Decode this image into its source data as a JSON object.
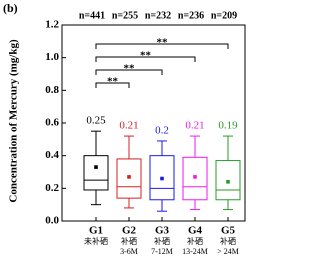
{
  "chart_data": {
    "type": "box",
    "panel_label": "(b)",
    "y_label": "Concentration of Mercury (mg/kg)",
    "counts": [
      "n=441",
      "n=255",
      "n=232",
      "n=236",
      "n=209"
    ],
    "categories": [
      "G1",
      "G2",
      "G3",
      "G4",
      "G5"
    ],
    "sublabels": [
      [
        "未补硒"
      ],
      [
        "补硒",
        "3-6M"
      ],
      [
        "补硒",
        "7-12M"
      ],
      [
        "补硒",
        "13-24M"
      ],
      [
        "补硒",
        "> 24M"
      ]
    ],
    "boxes": [
      {
        "color": "#000000",
        "low": 0.1,
        "q1": 0.19,
        "median": 0.25,
        "q3": 0.4,
        "high": 0.55,
        "mean": 0.33
      },
      {
        "color": "#d42020",
        "low": 0.08,
        "q1": 0.14,
        "median": 0.21,
        "q3": 0.38,
        "high": 0.52,
        "mean": 0.27
      },
      {
        "color": "#1a1aee",
        "low": 0.06,
        "q1": 0.13,
        "median": 0.2,
        "q3": 0.4,
        "high": 0.49,
        "mean": 0.26
      },
      {
        "color": "#ee1aee",
        "low": 0.07,
        "q1": 0.13,
        "median": 0.21,
        "q3": 0.39,
        "high": 0.52,
        "mean": 0.27
      },
      {
        "color": "#2a9a2a",
        "low": 0.07,
        "q1": 0.13,
        "median": 0.19,
        "q3": 0.37,
        "high": 0.52,
        "mean": 0.24
      }
    ],
    "significance": [
      {
        "label": "**",
        "groups": [
          "G1",
          "G5"
        ]
      },
      {
        "label": "**",
        "groups": [
          "G1",
          "G4"
        ]
      },
      {
        "label": "**",
        "groups": [
          "G1",
          "G3"
        ]
      },
      {
        "label": "**",
        "groups": [
          "G1",
          "G2"
        ]
      }
    ],
    "ylim": [
      0,
      1.2
    ],
    "yticks": [
      {
        "value": 0,
        "label": "0.0"
      },
      {
        "value": 0.2,
        "label": "0.2"
      },
      {
        "value": 0.4,
        "label": "0.4"
      },
      {
        "value": 0.6,
        "label": "0.6"
      },
      {
        "value": 0.8,
        "label": "0.8"
      },
      {
        "value": 1.0,
        "label": "1.0"
      },
      {
        "value": 1.2,
        "label": "1.2"
      }
    ]
  }
}
